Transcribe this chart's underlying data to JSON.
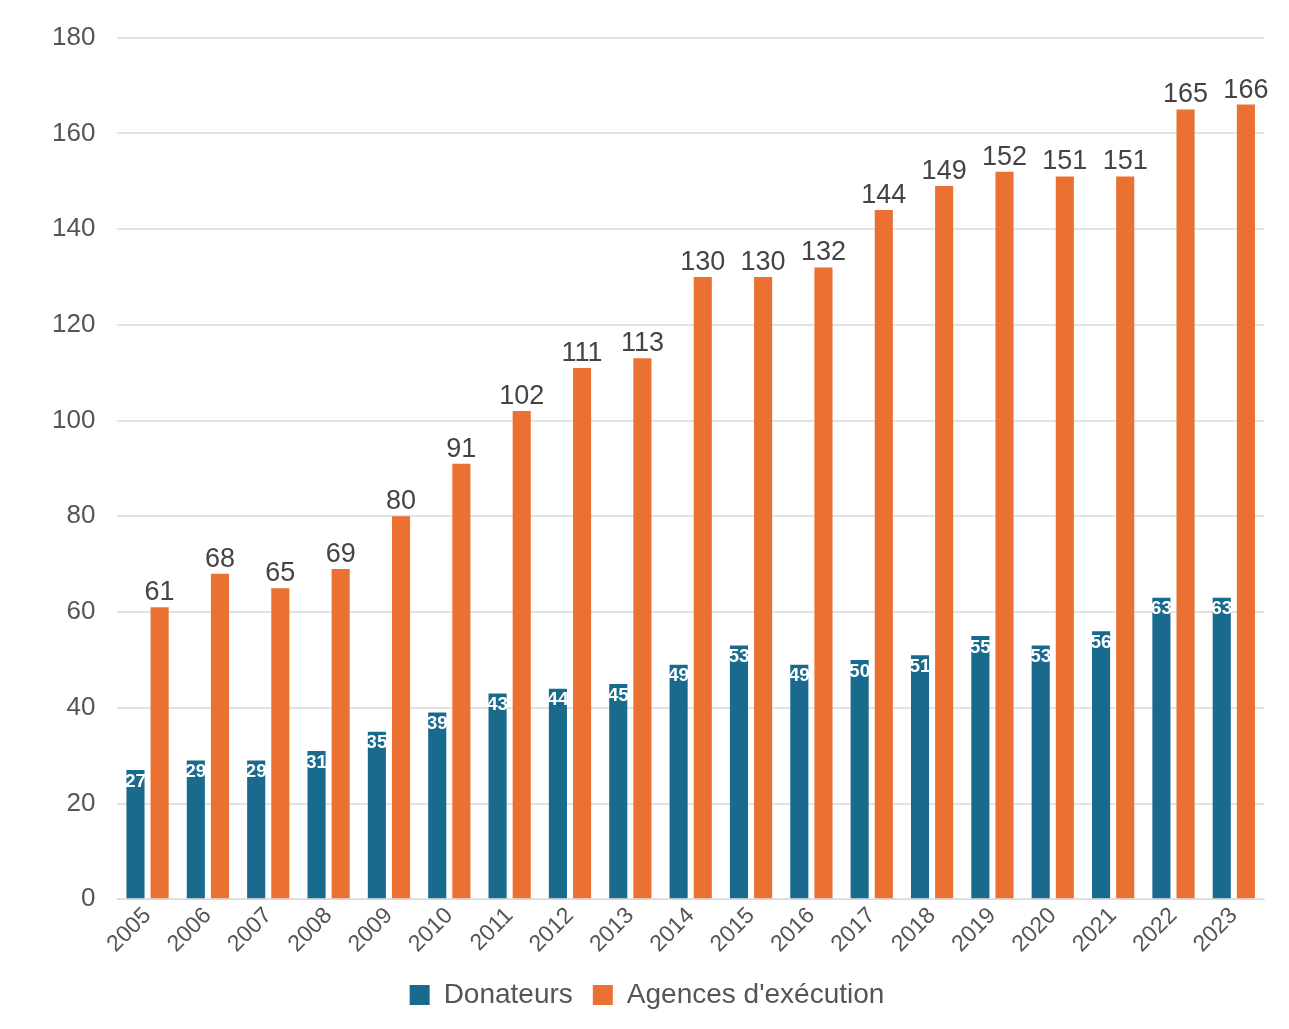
{
  "chart_data": {
    "type": "bar",
    "categories": [
      "2005",
      "2006",
      "2007",
      "2008",
      "2009",
      "2010",
      "2011",
      "2012",
      "2013",
      "2014",
      "2015",
      "2016",
      "2017",
      "2018",
      "2019",
      "2020",
      "2021",
      "2022",
      "2023"
    ],
    "series": [
      {
        "name": "Donateurs",
        "color": "#1a6a8e",
        "values": [
          27,
          29,
          29,
          31,
          35,
          39,
          43,
          44,
          45,
          49,
          53,
          49,
          50,
          51,
          55,
          53,
          56,
          63,
          63
        ]
      },
      {
        "name": "Agences d'exécution",
        "color": "#ea7131",
        "values": [
          61,
          68,
          65,
          69,
          80,
          91,
          102,
          111,
          113,
          130,
          130,
          132,
          144,
          149,
          152,
          151,
          151,
          165,
          166
        ]
      }
    ],
    "ylim": [
      0,
      180
    ],
    "yticks": [
      0,
      20,
      40,
      60,
      80,
      100,
      120,
      140,
      160,
      180
    ],
    "grid": "y",
    "legend": "bottom",
    "data_labels": true
  }
}
